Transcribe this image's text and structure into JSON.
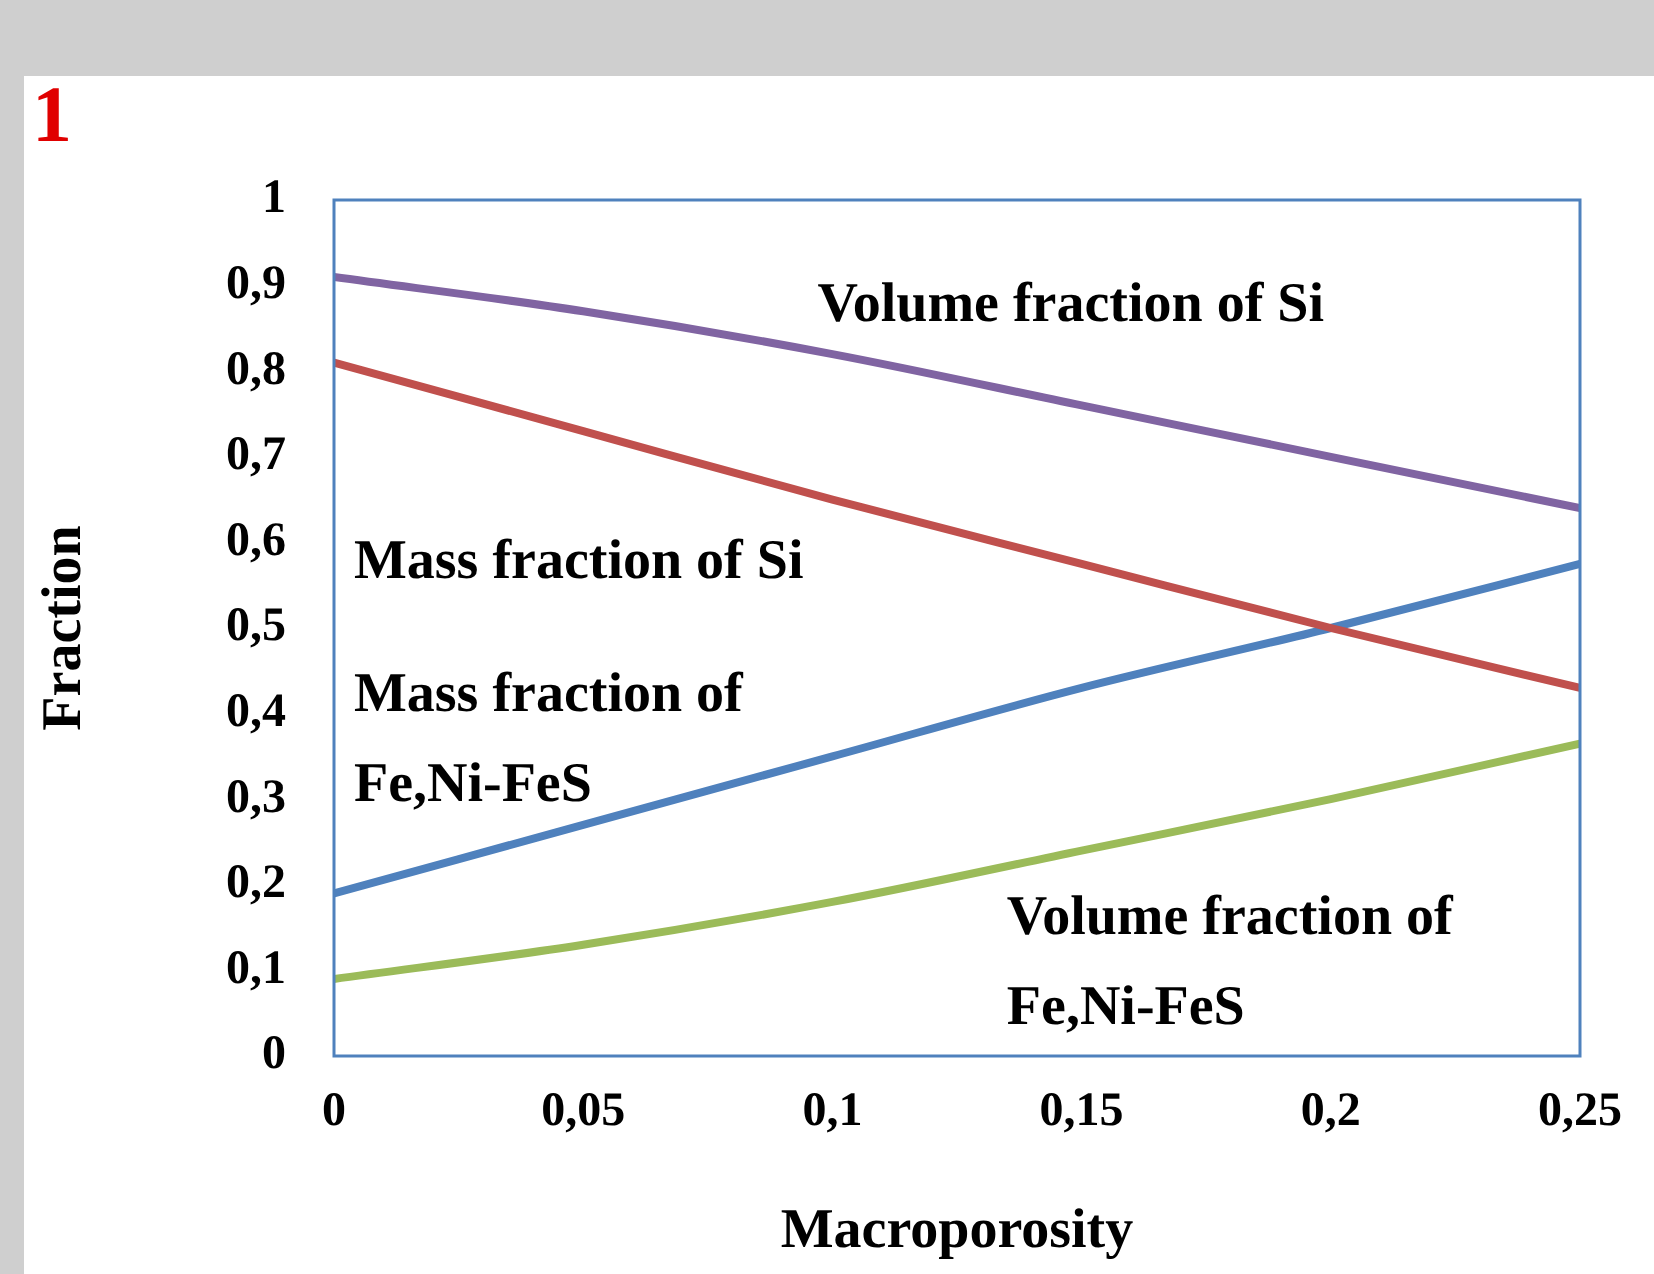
{
  "chart_data": {
    "type": "line",
    "xlabel": "Macroporosity",
    "ylabel": "Fraction",
    "annotations": [
      "1"
    ],
    "x": [
      0,
      0.05,
      0.1,
      0.15,
      0.2,
      0.25
    ],
    "xlim": [
      0,
      0.25
    ],
    "xticks": [
      0,
      {
        "value": 0.05,
        "label": "0,05"
      },
      {
        "value": 0.1,
        "label": "0,1"
      },
      {
        "value": 0.15,
        "label": "0,15"
      },
      {
        "value": 0.2,
        "label": "0,2"
      },
      {
        "value": 0.25,
        "label": "0,25"
      }
    ],
    "ylim": [
      0,
      1
    ],
    "yticks": [
      0,
      {
        "value": 0.1,
        "label": "0,1"
      },
      {
        "value": 0.2,
        "label": "0,2"
      },
      {
        "value": 0.3,
        "label": "0,3"
      },
      {
        "value": 0.4,
        "label": "0,4"
      },
      {
        "value": 0.5,
        "label": "0,5"
      },
      {
        "value": 0.6,
        "label": "0,6"
      },
      {
        "value": 0.7,
        "label": "0,7"
      },
      {
        "value": 0.8,
        "label": "0,8"
      },
      {
        "value": 0.9,
        "label": "0,9"
      },
      1
    ],
    "grid": false,
    "legend": false,
    "marker": "none",
    "line_style": "solid",
    "series": [
      {
        "name": "Volume fraction of Si",
        "color": "#8064a2",
        "values": [
          0.91,
          0.87,
          0.82,
          0.76,
          0.7,
          0.64
        ]
      },
      {
        "name": "Mass fraction of Si",
        "color": "#c0504d",
        "values": [
          0.81,
          0.73,
          0.65,
          0.575,
          0.5,
          0.43
        ]
      },
      {
        "name": "Mass fraction of Fe,Ni-FeS",
        "color": "#4f81bd",
        "values": [
          0.19,
          0.27,
          0.35,
          0.43,
          0.5,
          0.575
        ]
      },
      {
        "name": "Volume fraction of Fe,Ni-FeS",
        "color": "#9bbb59",
        "values": [
          0.09,
          0.13,
          0.18,
          0.24,
          0.3,
          0.365
        ]
      }
    ]
  }
}
